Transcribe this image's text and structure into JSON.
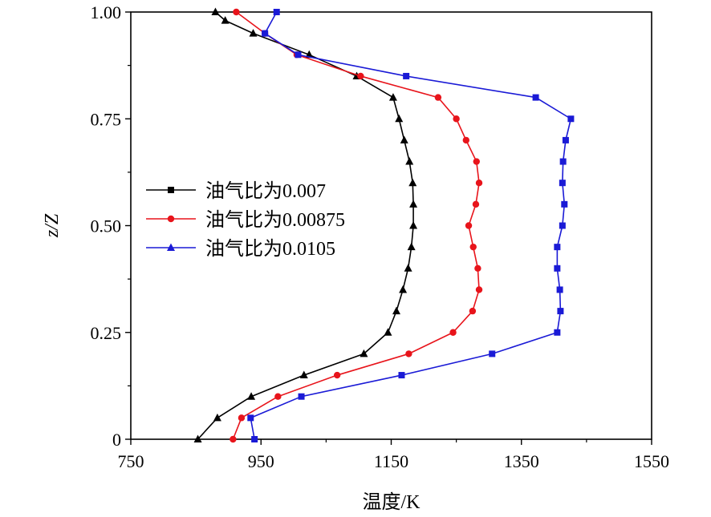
{
  "chart_data": {
    "type": "line",
    "title": "",
    "xlabel": "温度/K",
    "ylabel": "z/Z",
    "xlim": [
      750,
      1550
    ],
    "ylim": [
      0,
      1
    ],
    "x_ticks": [
      750,
      950,
      1150,
      1350,
      1550
    ],
    "x_tick_labels": [
      "750",
      "950",
      "1150",
      "1350",
      "1550"
    ],
    "y_ticks": [
      0,
      0.25,
      0.5,
      0.75,
      1.0
    ],
    "y_tick_labels": [
      "0",
      "0.25",
      "0.50",
      "0.75",
      "1.00"
    ],
    "grid": false,
    "legend_position": "left-middle",
    "series": [
      {
        "name": "油气比为0.007",
        "color": "#000000",
        "marker": "triangle",
        "legend_marker": "square",
        "points": [
          [
            853,
            0.0
          ],
          [
            883,
            0.05
          ],
          [
            935,
            0.1
          ],
          [
            1016,
            0.15
          ],
          [
            1108,
            0.2
          ],
          [
            1145,
            0.25
          ],
          [
            1158,
            0.3
          ],
          [
            1168,
            0.35
          ],
          [
            1176,
            0.4
          ],
          [
            1181,
            0.45
          ],
          [
            1184,
            0.5
          ],
          [
            1184,
            0.55
          ],
          [
            1183,
            0.6
          ],
          [
            1178,
            0.65
          ],
          [
            1170,
            0.7
          ],
          [
            1162,
            0.75
          ],
          [
            1153,
            0.8
          ],
          [
            1097,
            0.85
          ],
          [
            1024,
            0.9
          ],
          [
            938,
            0.95
          ],
          [
            895,
            0.98
          ],
          [
            880,
            1.0
          ]
        ]
      },
      {
        "name": "油气比为0.00875",
        "color": "#e8141b",
        "marker": "circle",
        "legend_marker": "circle",
        "points": [
          [
            907,
            0.0
          ],
          [
            920,
            0.05
          ],
          [
            976,
            0.1
          ],
          [
            1067,
            0.15
          ],
          [
            1177,
            0.2
          ],
          [
            1245,
            0.25
          ],
          [
            1275,
            0.3
          ],
          [
            1285,
            0.35
          ],
          [
            1283,
            0.4
          ],
          [
            1276,
            0.45
          ],
          [
            1269,
            0.5
          ],
          [
            1280,
            0.55
          ],
          [
            1285,
            0.6
          ],
          [
            1281,
            0.65
          ],
          [
            1265,
            0.7
          ],
          [
            1250,
            0.75
          ],
          [
            1222,
            0.8
          ],
          [
            1103,
            0.85
          ],
          [
            1005,
            0.9
          ],
          [
            956,
            0.95
          ],
          [
            912,
            1.0
          ]
        ]
      },
      {
        "name": "油气比为0.0105",
        "color": "#1a1ad6",
        "marker": "square",
        "legend_marker": "triangle",
        "points": [
          [
            940,
            0.0
          ],
          [
            934,
            0.05
          ],
          [
            1012,
            0.1
          ],
          [
            1166,
            0.15
          ],
          [
            1305,
            0.2
          ],
          [
            1405,
            0.25
          ],
          [
            1410,
            0.3
          ],
          [
            1409,
            0.35
          ],
          [
            1405,
            0.4
          ],
          [
            1405,
            0.45
          ],
          [
            1413,
            0.5
          ],
          [
            1416,
            0.55
          ],
          [
            1413,
            0.6
          ],
          [
            1414,
            0.65
          ],
          [
            1418,
            0.7
          ],
          [
            1426,
            0.75
          ],
          [
            1372,
            0.8
          ],
          [
            1173,
            0.85
          ],
          [
            1007,
            0.9
          ],
          [
            956,
            0.95
          ],
          [
            974,
            1.0
          ]
        ]
      }
    ]
  }
}
